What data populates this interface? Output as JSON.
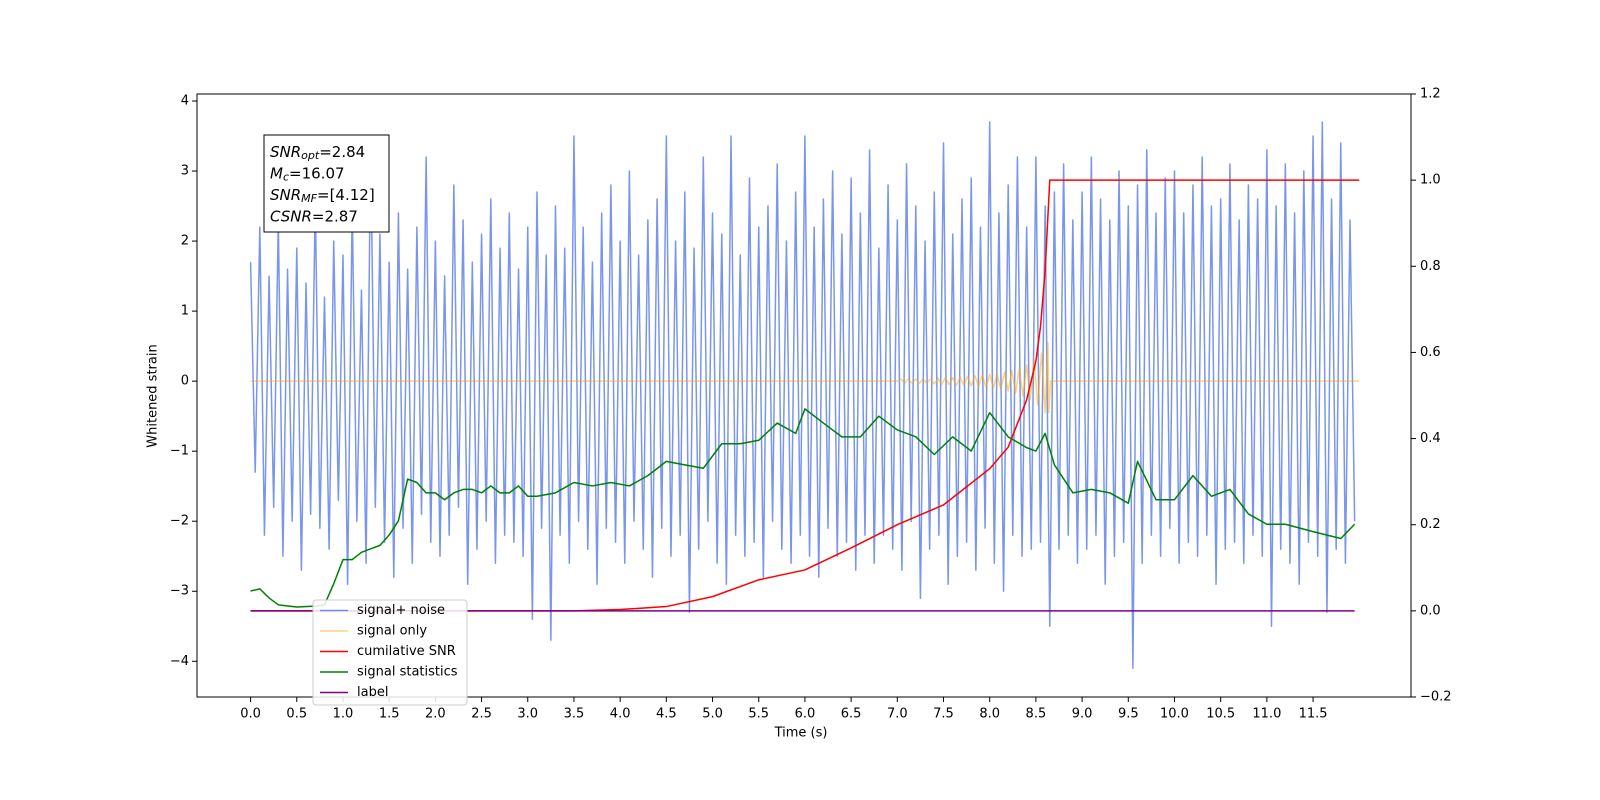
{
  "chart_data": {
    "type": "line",
    "xlabel": "Time (s)",
    "ylabel": "Whitened strain",
    "xlim": [
      -0.58,
      12.56
    ],
    "ylim": [
      -4.51,
      4.1
    ],
    "y2lim": [
      -0.2,
      1.2
    ],
    "xticks": [
      {
        "value": 0,
        "label": "0.0"
      },
      0.5,
      {
        "value": 1,
        "label": "1.0"
      },
      1.5,
      {
        "value": 2,
        "label": "2.0"
      },
      2.5,
      {
        "value": 3,
        "label": "3.0"
      },
      3.5,
      {
        "value": 4,
        "label": "4.0"
      },
      4.5,
      {
        "value": 5,
        "label": "5.0"
      },
      5.5,
      {
        "value": 6,
        "label": "6.0"
      },
      6.5,
      {
        "value": 7,
        "label": "7.0"
      },
      7.5,
      {
        "value": 8,
        "label": "8.0"
      },
      8.5,
      {
        "value": 9,
        "label": "9.0"
      },
      9.5,
      {
        "value": 10,
        "label": "10.0"
      },
      10.5,
      {
        "value": 11,
        "label": "11.0"
      },
      11.5
    ],
    "yticks": [
      {
        "value": -4,
        "label": "−4"
      },
      {
        "value": -3,
        "label": "−3"
      },
      {
        "value": -2,
        "label": "−2"
      },
      {
        "value": -1,
        "label": "−1"
      },
      0,
      1,
      2,
      3,
      4
    ],
    "y2ticks": [
      {
        "value": -0.2,
        "label": "−0.2"
      },
      {
        "value": 0,
        "label": "0.0"
      },
      0.2,
      0.4,
      0.6,
      0.8,
      {
        "value": 1,
        "label": "1.0"
      },
      1.2
    ],
    "legend": "lower left",
    "annotation": [
      {
        "base": "SNR",
        "sub": "opt",
        "text": "=2.84"
      },
      {
        "base": "M",
        "sub": "c",
        "text": "=16.07"
      },
      {
        "base": "SNR",
        "sub": "MF",
        "text": "=[4.12]"
      },
      {
        "base": "CSNR",
        "sub": "",
        "text": "=2.87"
      }
    ],
    "series": [
      {
        "name": "signal+ noise",
        "color": "#4169e1",
        "alpha": 0.7,
        "x": [
          0,
          0.05,
          0.1,
          0.15,
          0.2,
          0.25,
          0.3,
          0.35,
          0.4,
          0.45,
          0.5,
          0.55,
          0.6,
          0.65,
          0.7,
          0.75,
          0.8,
          0.85,
          0.9,
          0.95,
          1,
          1.05,
          1.1,
          1.15,
          1.2,
          1.25,
          1.3,
          1.35,
          1.4,
          1.45,
          1.5,
          1.55,
          1.6,
          1.65,
          1.7,
          1.75,
          1.8,
          1.85,
          1.9,
          1.95,
          2,
          2.05,
          2.1,
          2.15,
          2.2,
          2.25,
          2.3,
          2.35,
          2.4,
          2.45,
          2.5,
          2.55,
          2.6,
          2.65,
          2.7,
          2.75,
          2.8,
          2.85,
          2.9,
          2.95,
          3,
          3.05,
          3.1,
          3.15,
          3.2,
          3.25,
          3.3,
          3.35,
          3.4,
          3.45,
          3.5,
          3.55,
          3.6,
          3.65,
          3.7,
          3.75,
          3.8,
          3.85,
          3.9,
          3.95,
          4,
          4.05,
          4.1,
          4.15,
          4.2,
          4.25,
          4.3,
          4.35,
          4.4,
          4.45,
          4.5,
          4.55,
          4.6,
          4.65,
          4.7,
          4.75,
          4.8,
          4.85,
          4.9,
          4.95,
          5,
          5.05,
          5.1,
          5.15,
          5.2,
          5.25,
          5.3,
          5.35,
          5.4,
          5.45,
          5.5,
          5.55,
          5.6,
          5.65,
          5.7,
          5.75,
          5.8,
          5.85,
          5.9,
          5.95,
          6,
          6.05,
          6.1,
          6.15,
          6.2,
          6.25,
          6.3,
          6.35,
          6.4,
          6.45,
          6.5,
          6.55,
          6.6,
          6.65,
          6.7,
          6.75,
          6.8,
          6.85,
          6.9,
          6.95,
          7,
          7.05,
          7.1,
          7.15,
          7.2,
          7.25,
          7.3,
          7.35,
          7.4,
          7.45,
          7.5,
          7.55,
          7.6,
          7.65,
          7.7,
          7.75,
          7.8,
          7.85,
          7.9,
          7.95,
          8,
          8.05,
          8.1,
          8.15,
          8.2,
          8.25,
          8.3,
          8.35,
          8.4,
          8.45,
          8.5,
          8.55,
          8.6,
          8.65,
          8.7,
          8.75,
          8.8,
          8.85,
          8.9,
          8.95,
          9,
          9.05,
          9.1,
          9.15,
          9.2,
          9.25,
          9.3,
          9.35,
          9.4,
          9.45,
          9.5,
          9.55,
          9.6,
          9.65,
          9.7,
          9.75,
          9.8,
          9.85,
          9.9,
          9.95,
          10,
          10.05,
          10.1,
          10.15,
          10.2,
          10.25,
          10.3,
          10.35,
          10.4,
          10.45,
          10.5,
          10.55,
          10.6,
          10.65,
          10.7,
          10.75,
          10.8,
          10.85,
          10.9,
          10.95,
          11,
          11.05,
          11.1,
          11.15,
          11.2,
          11.25,
          11.3,
          11.35,
          11.4,
          11.45,
          11.5,
          11.55,
          11.6,
          11.65,
          11.7,
          11.75,
          11.8,
          11.85,
          11.9,
          11.95
        ],
        "values": [
          1.7,
          -1.3,
          2.2,
          -2.2,
          1.5,
          -1.8,
          2.3,
          -2.5,
          1.6,
          -2.0,
          1.9,
          -2.7,
          1.4,
          -1.9,
          2.6,
          -2.1,
          1.2,
          -2.4,
          2.0,
          -1.7,
          1.8,
          -2.9,
          2.5,
          -2.0,
          1.3,
          -2.6,
          3.4,
          -1.8,
          2.1,
          -2.3,
          1.7,
          -2.8,
          2.4,
          -2.1,
          1.6,
          -2.6,
          2.2,
          -1.9,
          3.2,
          -2.3,
          2.0,
          -2.5,
          1.5,
          -2.2,
          2.8,
          -1.8,
          2.3,
          -2.9,
          1.7,
          -2.4,
          2.1,
          -2.0,
          2.6,
          -2.6,
          1.9,
          -2.2,
          2.4,
          -2.3,
          1.6,
          -2.5,
          2.2,
          -3.4,
          2.7,
          -2.1,
          1.8,
          -3.7,
          2.5,
          -2.2,
          1.9,
          -2.6,
          3.5,
          -2.0,
          2.2,
          -2.4,
          1.7,
          -2.9,
          2.4,
          -2.1,
          2.8,
          -2.3,
          2.0,
          -2.6,
          3.0,
          -2.0,
          1.8,
          -2.4,
          2.3,
          -2.8,
          2.6,
          -2.1,
          3.5,
          -2.5,
          2.0,
          -2.2,
          2.7,
          -3.3,
          1.9,
          -2.4,
          3.2,
          -2.0,
          2.4,
          -2.6,
          2.1,
          -2.9,
          3.5,
          -2.2,
          1.8,
          -2.5,
          2.9,
          -2.3,
          2.2,
          -2.8,
          2.5,
          -2.0,
          3.1,
          -2.4,
          2.0,
          -2.6,
          2.7,
          -2.2,
          3.5,
          -2.5,
          2.2,
          -2.8,
          2.6,
          -2.1,
          3.0,
          -2.5,
          2.1,
          -2.3,
          2.9,
          -2.7,
          2.4,
          -2.2,
          3.3,
          -2.6,
          1.9,
          -2.2,
          2.8,
          -2.4,
          2.3,
          -2.7,
          3.1,
          -2.0,
          2.5,
          -3.1,
          2.0,
          -2.4,
          2.7,
          -2.2,
          3.4,
          -2.9,
          2.1,
          -2.5,
          2.6,
          -2.3,
          2.9,
          -2.7,
          2.2,
          -2.1,
          3.7,
          -2.6,
          2.4,
          -3.0,
          2.8,
          -2.2,
          3.2,
          -2.5,
          2.2,
          -2.4,
          3.2,
          -2.3,
          2.5,
          -3.5,
          2.7,
          -2.4,
          3.1,
          -2.2,
          2.3,
          -2.6,
          2.7,
          -2.4,
          3.2,
          -2.2,
          2.6,
          -2.9,
          2.3,
          -2.5,
          3.0,
          -2.3,
          2.5,
          -4.1,
          2.8,
          -2.6,
          3.3,
          -2.2,
          2.4,
          -2.5,
          2.9,
          -2.1,
          3.0,
          -2.6,
          2.4,
          -2.3,
          2.8,
          -2.5,
          3.2,
          -2.2,
          2.5,
          -2.9,
          2.6,
          -2.4,
          3.1,
          -2.3,
          2.3,
          -2.6,
          2.8,
          -2.2,
          2.6,
          -2.5,
          3.3,
          -3.5,
          2.5,
          -2.4,
          3.1,
          -2.6,
          2.4,
          -2.9,
          3.0,
          -2.3,
          3.5,
          -2.5,
          3.7,
          -3.3,
          2.6,
          -2.4,
          3.4,
          -2.6,
          2.3,
          -2.0
        ]
      },
      {
        "name": "signal only",
        "color": "#ffa500",
        "alpha": 0.5,
        "x": [
          0,
          7,
          7.04,
          7.08,
          7.12,
          7.16,
          7.2,
          7.24,
          7.28,
          7.32,
          7.36,
          7.4,
          7.44,
          7.48,
          7.52,
          7.56,
          7.6,
          7.64,
          7.68,
          7.72,
          7.76,
          7.8,
          7.84,
          7.88,
          7.92,
          7.96,
          8,
          8.04,
          8.08,
          8.12,
          8.16,
          8.2,
          8.24,
          8.28,
          8.32,
          8.36,
          8.4,
          8.44,
          8.48,
          8.52,
          8.56,
          8.6,
          8.63,
          8.64,
          8.66,
          12
        ],
        "values": [
          0,
          0,
          0.03,
          -0.03,
          0.03,
          -0.03,
          0.03,
          -0.03,
          0.03,
          -0.03,
          0.03,
          -0.04,
          0.04,
          -0.05,
          0.05,
          -0.05,
          0.05,
          -0.06,
          0.06,
          -0.06,
          0.07,
          -0.07,
          0.08,
          -0.08,
          0.09,
          -0.09,
          0.1,
          -0.1,
          0.11,
          -0.12,
          0.13,
          -0.14,
          0.15,
          -0.17,
          0.19,
          -0.21,
          0.23,
          -0.26,
          0.3,
          -0.34,
          0.4,
          -0.45,
          0.55,
          -0.45,
          0,
          0
        ]
      },
      {
        "name": "cumilative SNR",
        "color": "#ff0000",
        "alpha": 1,
        "axis": "y2",
        "x": [
          0,
          3.5,
          4,
          4.5,
          5,
          5.5,
          6,
          6.5,
          7,
          7.5,
          8,
          8.2,
          8.4,
          8.5,
          8.55,
          8.6,
          8.65,
          12
        ],
        "values": [
          0,
          0,
          0.003,
          0.01,
          0.033,
          0.072,
          0.095,
          0.146,
          0.2,
          0.246,
          0.33,
          0.38,
          0.49,
          0.58,
          0.66,
          0.79,
          1,
          1
        ]
      },
      {
        "name": "signal statistics",
        "color": "#008000",
        "alpha": 1,
        "axis": "y2",
        "x": [
          0,
          0.1,
          0.2,
          0.3,
          0.5,
          0.7,
          0.8,
          0.9,
          1,
          1.1,
          1.2,
          1.3,
          1.4,
          1.5,
          1.6,
          1.7,
          1.8,
          1.9,
          2,
          2.1,
          2.2,
          2.3,
          2.4,
          2.5,
          2.6,
          2.7,
          2.8,
          2.9,
          3,
          3.1,
          3.3,
          3.5,
          3.7,
          3.9,
          4.1,
          4.3,
          4.5,
          4.7,
          4.9,
          5.1,
          5.3,
          5.5,
          5.7,
          5.9,
          6,
          6.2,
          6.4,
          6.6,
          6.8,
          7,
          7.2,
          7.4,
          7.6,
          7.8,
          8,
          8.2,
          8.4,
          8.5,
          8.6,
          8.7,
          8.9,
          9.1,
          9.3,
          9.5,
          9.6,
          9.8,
          10,
          10.2,
          10.4,
          10.6,
          10.8,
          11,
          11.2,
          11.5,
          11.8,
          11.95
        ],
        "values": [
          0.046,
          0.051,
          0.03,
          0.014,
          0.009,
          0.011,
          0.014,
          0.063,
          0.119,
          0.119,
          0.136,
          0.144,
          0.152,
          0.176,
          0.209,
          0.306,
          0.298,
          0.274,
          0.274,
          0.258,
          0.274,
          0.282,
          0.282,
          0.274,
          0.29,
          0.274,
          0.274,
          0.29,
          0.266,
          0.266,
          0.274,
          0.298,
          0.29,
          0.298,
          0.29,
          0.314,
          0.347,
          0.339,
          0.331,
          0.388,
          0.388,
          0.396,
          0.436,
          0.412,
          0.469,
          0.436,
          0.404,
          0.404,
          0.452,
          0.42,
          0.404,
          0.363,
          0.404,
          0.371,
          0.46,
          0.404,
          0.379,
          0.371,
          0.412,
          0.339,
          0.274,
          0.282,
          0.274,
          0.25,
          0.347,
          0.258,
          0.258,
          0.314,
          0.266,
          0.282,
          0.225,
          0.201,
          0.201,
          0.184,
          0.168,
          0.201
        ]
      },
      {
        "name": "label",
        "color": "#800080",
        "alpha": 1,
        "axis": "y2",
        "x": [
          0,
          11.95
        ],
        "values": [
          0,
          0
        ]
      }
    ]
  }
}
